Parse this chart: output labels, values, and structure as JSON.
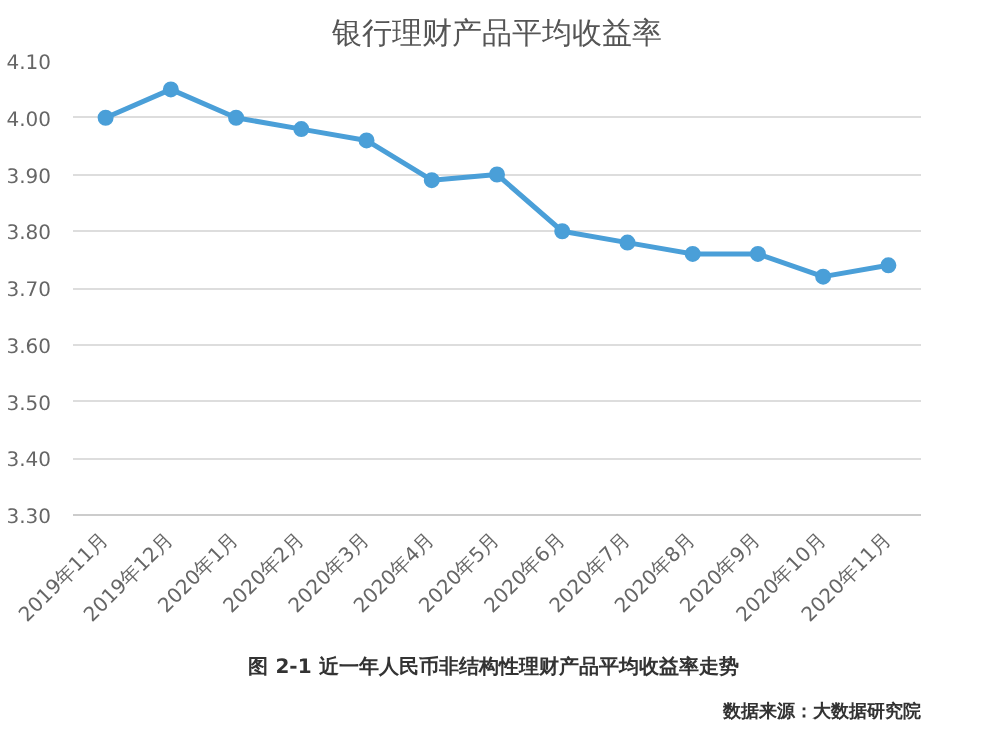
{
  "chart_data": {
    "type": "line",
    "title": "银行理财产品平均收益率",
    "categories": [
      "2019年11月",
      "2019年12月",
      "2020年1月",
      "2020年2月",
      "2020年3月",
      "2020年4月",
      "2020年5月",
      "2020年6月",
      "2020年7月",
      "2020年8月",
      "2020年9月",
      "2020年10月",
      "2020年11月"
    ],
    "series": [
      {
        "color": "#4a9fd8",
        "values": [
          4.0,
          4.05,
          4.0,
          3.98,
          3.96,
          3.89,
          3.9,
          3.8,
          3.78,
          3.76,
          3.76,
          3.72,
          3.74
        ]
      }
    ],
    "ylim": [
      3.3,
      4.1
    ],
    "yticks": [
      {
        "value": 3.3,
        "label": "3.30"
      },
      {
        "value": 3.4,
        "label": "3.40"
      },
      {
        "value": 3.5,
        "label": "3.50"
      },
      {
        "value": 3.6,
        "label": "3.60"
      },
      {
        "value": 3.7,
        "label": "3.70"
      },
      {
        "value": 3.8,
        "label": "3.80"
      },
      {
        "value": 3.9,
        "label": "3.90"
      },
      {
        "value": 4.0,
        "label": "4.00"
      },
      {
        "value": 4.1,
        "label": "4.10"
      }
    ],
    "grid": "y",
    "marker": "circle",
    "line_style": "solid",
    "annotations": [
      "图 2-1  近一年人民币非结构性理财产品平均收益率走势",
      "数据来源：大数据研究院"
    ]
  }
}
